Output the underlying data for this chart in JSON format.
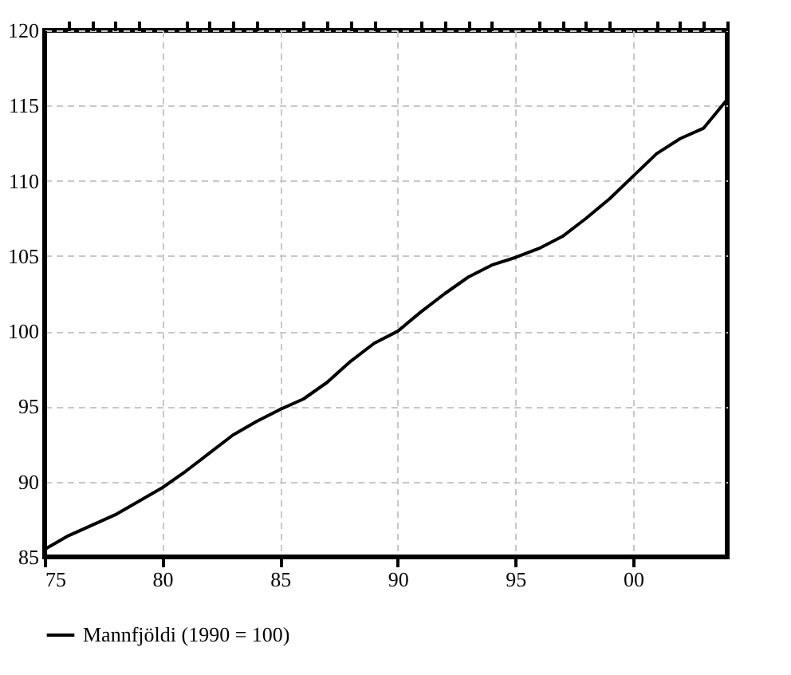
{
  "chart_data": {
    "type": "line",
    "x": [
      1975,
      1976,
      1977,
      1978,
      1979,
      1980,
      1981,
      1982,
      1983,
      1984,
      1985,
      1986,
      1987,
      1988,
      1989,
      1990,
      1991,
      1992,
      1993,
      1994,
      1995,
      1996,
      1997,
      1998,
      1999,
      2000,
      2001,
      2002,
      2003,
      2004
    ],
    "series": [
      {
        "name": "Mannfjöldi (1990 = 100)",
        "color": "#000000",
        "values": [
          85.5,
          86.4,
          87.1,
          87.8,
          88.7,
          89.6,
          90.7,
          91.9,
          93.1,
          94.0,
          94.8,
          95.5,
          96.6,
          98.0,
          99.2,
          100.0,
          101.3,
          102.5,
          103.6,
          104.4,
          104.9,
          105.5,
          106.3,
          107.5,
          108.8,
          110.3,
          111.8,
          112.8,
          113.5,
          115.4
        ]
      }
    ],
    "xlim": [
      1975,
      2004
    ],
    "xticks": [
      {
        "value": 1975,
        "label": "75"
      },
      {
        "value": 1976,
        "label": null
      },
      {
        "value": 1977,
        "label": null
      },
      {
        "value": 1978,
        "label": null
      },
      {
        "value": 1979,
        "label": null
      },
      {
        "value": 1980,
        "label": "80"
      },
      {
        "value": 1981,
        "label": null
      },
      {
        "value": 1982,
        "label": null
      },
      {
        "value": 1983,
        "label": null
      },
      {
        "value": 1984,
        "label": null
      },
      {
        "value": 1985,
        "label": "85"
      },
      {
        "value": 1986,
        "label": null
      },
      {
        "value": 1987,
        "label": null
      },
      {
        "value": 1988,
        "label": null
      },
      {
        "value": 1989,
        "label": null
      },
      {
        "value": 1990,
        "label": "90"
      },
      {
        "value": 1991,
        "label": null
      },
      {
        "value": 1992,
        "label": null
      },
      {
        "value": 1993,
        "label": null
      },
      {
        "value": 1994,
        "label": null
      },
      {
        "value": 1995,
        "label": "95"
      },
      {
        "value": 1996,
        "label": null
      },
      {
        "value": 1997,
        "label": null
      },
      {
        "value": 1998,
        "label": null
      },
      {
        "value": 1999,
        "label": null
      },
      {
        "value": 2000,
        "label": "00"
      },
      {
        "value": 2001,
        "label": null
      },
      {
        "value": 2002,
        "label": null
      },
      {
        "value": 2003,
        "label": null
      },
      {
        "value": 2004,
        "label": null
      }
    ],
    "ylim": [
      85,
      120
    ],
    "yticks": [
      85,
      90,
      95,
      100,
      105,
      110,
      115,
      120
    ],
    "grid": true,
    "legend": "bottom",
    "marker": "none",
    "line_style": "solid"
  }
}
